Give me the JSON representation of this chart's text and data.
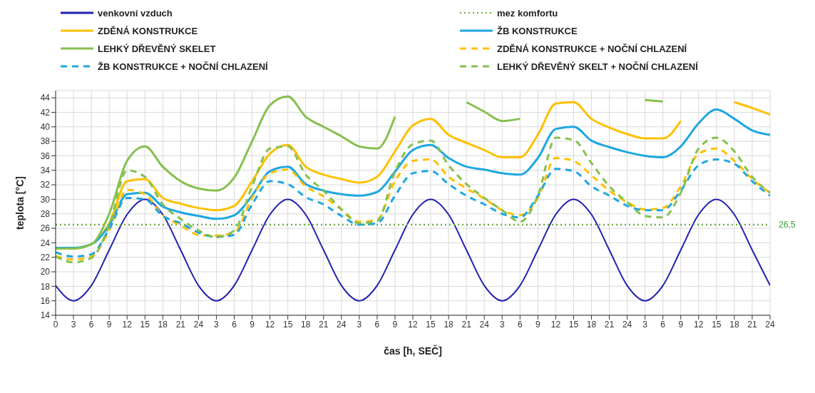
{
  "chart_data": {
    "type": "line",
    "xlabel": "čas [h, SEČ]",
    "ylabel": "teplota [°C]",
    "categories": [
      "0",
      "3",
      "6",
      "9",
      "12",
      "15",
      "18",
      "21",
      "24",
      "3",
      "6",
      "9",
      "12",
      "15",
      "18",
      "21",
      "24",
      "3",
      "6",
      "9",
      "12",
      "15",
      "18",
      "21",
      "24",
      "3",
      "6",
      "9",
      "12",
      "15",
      "18",
      "21",
      "24",
      "3",
      "6",
      "9",
      "12",
      "15",
      "18",
      "21",
      "24"
    ],
    "ylim": [
      14,
      45
    ],
    "yticks": [
      14,
      16,
      18,
      20,
      22,
      24,
      26,
      28,
      30,
      32,
      34,
      36,
      38,
      40,
      42,
      44
    ],
    "grid": true,
    "legend": "top",
    "marker": "none",
    "annotations": [
      "26,5"
    ],
    "series": [
      {
        "name": "venkovní vzduch",
        "color": "#2020b0",
        "line_style": "solid",
        "values": [
          18.1,
          16,
          18.1,
          23,
          27.9,
          30,
          27.9,
          23,
          18.1,
          16,
          18.1,
          23,
          27.9,
          30,
          27.9,
          23,
          18.1,
          16,
          18.1,
          23,
          27.9,
          30,
          27.9,
          23,
          18.1,
          16,
          18.1,
          23,
          27.9,
          30,
          27.9,
          23,
          18.1,
          16,
          18.1,
          23,
          27.9,
          30,
          27.9,
          23,
          18.1
        ]
      },
      {
        "name": "mez komfortu",
        "color": "#70ad47",
        "line_style": "dotted",
        "values": [
          26.5,
          26.5,
          26.5,
          26.5,
          26.5,
          26.5,
          26.5,
          26.5,
          26.5,
          26.5,
          26.5,
          26.5,
          26.5,
          26.5,
          26.5,
          26.5,
          26.5,
          26.5,
          26.5,
          26.5,
          26.5,
          26.5,
          26.5,
          26.5,
          26.5,
          26.5,
          26.5,
          26.5,
          26.5,
          26.5,
          26.5,
          26.5,
          26.5,
          26.5,
          26.5,
          26.5,
          26.5,
          26.5,
          26.5,
          26.5,
          26.5
        ]
      },
      {
        "name": "ZDĚNÁ KONSTRUKCE",
        "color": "#ffc000",
        "line_style": "solid",
        "values": [
          23.2,
          23.2,
          23.8,
          26.7,
          32.5,
          32.8,
          30.2,
          29.4,
          28.8,
          28.5,
          29.1,
          32.5,
          36.3,
          37.5,
          34.5,
          33.4,
          32.8,
          32.3,
          33.1,
          36.6,
          40.2,
          41.1,
          38.9,
          37.8,
          36.8,
          35.8,
          35.8,
          38.9,
          43.2,
          43.4,
          41.1,
          39.9,
          39,
          38.4,
          38.4,
          40.8,
          null,
          null,
          43.4,
          42.6,
          41.7
        ]
      },
      {
        "name": "ŽB KONSTRUKCE",
        "color": "#1ea7e1",
        "line_style": "solid",
        "values": [
          23.3,
          23.3,
          23.8,
          26.4,
          30.7,
          30.9,
          29,
          28.2,
          27.7,
          27.3,
          27.8,
          30.5,
          33.9,
          34.5,
          32.1,
          31.2,
          30.7,
          30.5,
          31,
          33.8,
          36.8,
          37.5,
          35.7,
          34.5,
          34.1,
          33.6,
          33.4,
          35.7,
          39.7,
          40,
          38.1,
          37.2,
          36.5,
          36,
          35.8,
          37.3,
          40.5,
          42.4,
          41.1,
          39.5,
          38.9
        ]
      },
      {
        "name": "LEHKÝ DŘEVĚNÝ SKELET",
        "color": "#86c04f",
        "line_style": "solid",
        "values": [
          23.2,
          23.2,
          23.8,
          28,
          35.3,
          37.3,
          34.5,
          32.5,
          31.5,
          31.2,
          33,
          38,
          43,
          44.2,
          41.4,
          40,
          38.7,
          37.3,
          37,
          41.4,
          null,
          null,
          null,
          43.4,
          42.1,
          40.8,
          41.1,
          null,
          null,
          null,
          null,
          null,
          null,
          43.7,
          43.5,
          null,
          null,
          null,
          null,
          null,
          null
        ]
      },
      {
        "name": "ZDĚNÁ KONSTRUKCE + NOČNÍ CHLAZENÍ",
        "color": "#ffc000",
        "line_style": "dashed",
        "values": [
          22.2,
          21.7,
          22.1,
          25.7,
          31.3,
          30.7,
          27.8,
          26.4,
          25.1,
          25,
          25.4,
          30.2,
          33.6,
          34.1,
          31.8,
          30.4,
          28.6,
          26.9,
          27.2,
          32.5,
          35.3,
          35.5,
          33.1,
          31.5,
          30.1,
          28.5,
          27.8,
          30.2,
          35.7,
          35.3,
          33.3,
          31.2,
          29.6,
          28.6,
          28.8,
          31.8,
          36.3,
          37,
          35.3,
          32.8,
          30.9
        ]
      },
      {
        "name": "ŽB KONSTRUKCE + NOČNÍ CHLAZENÍ",
        "color": "#1ea7e1",
        "line_style": "dashed",
        "values": [
          22.7,
          22.1,
          22.4,
          25.9,
          30.2,
          30,
          27.7,
          26.7,
          25.4,
          24.8,
          25.1,
          29.3,
          32.5,
          32.1,
          30.3,
          29.3,
          27.7,
          26.5,
          26.7,
          30.5,
          33.6,
          33.9,
          32.1,
          30.5,
          29.3,
          28,
          27.5,
          30.5,
          34.2,
          33.9,
          31.8,
          30.5,
          29.1,
          28.5,
          28.5,
          31.2,
          34.7,
          35.5,
          34.9,
          32.5,
          30.5
        ]
      },
      {
        "name": "LEHKÝ DŘEVĚNÝ SKELT + NOČNÍ CHLAZENÍ",
        "color": "#86c04f",
        "line_style": "dashed",
        "values": [
          22.1,
          21.3,
          21.9,
          26.4,
          34,
          33.1,
          29.3,
          27.3,
          25.7,
          24.8,
          25.7,
          31.8,
          37,
          37.3,
          33.4,
          31.2,
          28.6,
          26.7,
          27,
          33.8,
          37.6,
          38.1,
          34.7,
          32.1,
          30.2,
          28.5,
          26.9,
          30.5,
          38.5,
          38.2,
          35,
          31.8,
          29.6,
          27.7,
          27.5,
          30.9,
          37,
          38.5,
          36.6,
          33.1,
          30.9
        ]
      }
    ]
  }
}
